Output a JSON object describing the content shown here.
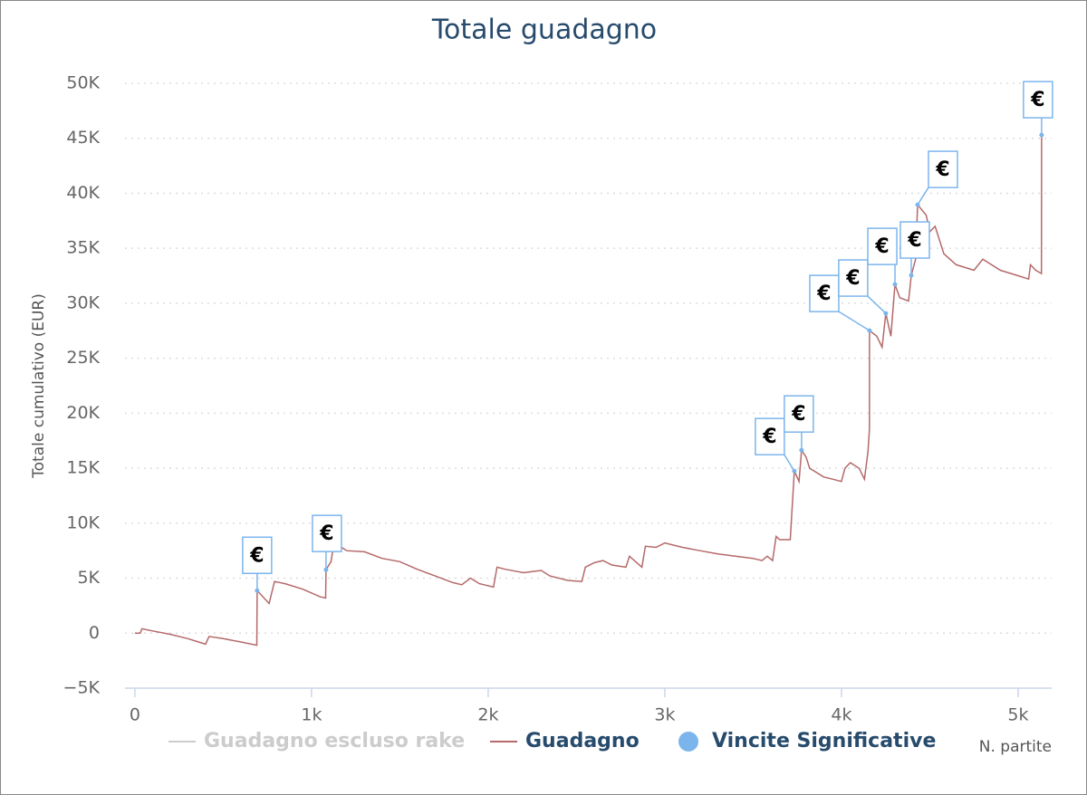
{
  "chart_data": {
    "type": "line",
    "title": "Totale guadagno",
    "x_label": "N. partite",
    "y_label": "Totale cumulativo (EUR)",
    "xlim": [
      -56,
      5190
    ],
    "ylim": [
      -5000,
      50000
    ],
    "xticks": [
      0,
      {
        "value": 1000,
        "label": "1k"
      },
      {
        "value": 2000,
        "label": "2k"
      },
      {
        "value": 3000,
        "label": "3k"
      },
      {
        "value": 4000,
        "label": "4k"
      },
      {
        "value": 5000,
        "label": "5k"
      }
    ],
    "yticks": [
      {
        "value": -5000,
        "label": "−5K"
      },
      0,
      {
        "value": 5000,
        "label": "5K"
      },
      {
        "value": 10000,
        "label": "10K"
      },
      {
        "value": 15000,
        "label": "15K"
      },
      {
        "value": 20000,
        "label": "20K"
      },
      {
        "value": 25000,
        "label": "25K"
      },
      {
        "value": 30000,
        "label": "30K"
      },
      {
        "value": 35000,
        "label": "35K"
      },
      {
        "value": 40000,
        "label": "40K"
      },
      {
        "value": 45000,
        "label": "45K"
      },
      {
        "value": 50000,
        "label": "50K"
      }
    ],
    "grid": true,
    "series": [
      {
        "name": "Guadagno escluso rake",
        "color": "#cccccc",
        "visible": false
      },
      {
        "name": "Guadagno",
        "color": "#b5696a",
        "x": [
          0,
          30,
          40,
          100,
          200,
          300,
          400,
          420,
          500,
          600,
          690,
          692,
          760,
          790,
          850,
          950,
          1050,
          1080,
          1082,
          1110,
          1120,
          1130,
          1200,
          1300,
          1400,
          1500,
          1600,
          1700,
          1800,
          1850,
          1900,
          1950,
          2030,
          2050,
          2100,
          2200,
          2300,
          2350,
          2450,
          2530,
          2550,
          2600,
          2650,
          2700,
          2780,
          2800,
          2870,
          2890,
          2950,
          3000,
          3100,
          3200,
          3300,
          3400,
          3500,
          3550,
          3580,
          3610,
          3630,
          3650,
          3710,
          3733,
          3760,
          3774,
          3800,
          3820,
          3900,
          3950,
          4000,
          4020,
          4050,
          4100,
          4130,
          4150,
          4158,
          4159,
          4200,
          4230,
          4251,
          4280,
          4303,
          4330,
          4380,
          4395,
          4420,
          4431,
          4480,
          4500,
          4530,
          4580,
          4650,
          4750,
          4800,
          4900,
          5000,
          5060,
          5070,
          5100,
          5132,
          5133
        ],
        "values": [
          0,
          0,
          400,
          200,
          -100,
          -500,
          -1000,
          -300,
          -500,
          -800,
          -1100,
          3870,
          2700,
          4700,
          4500,
          4000,
          3300,
          3200,
          5770,
          6500,
          7500,
          8200,
          7500,
          7400,
          6800,
          6500,
          5800,
          5200,
          4600,
          4400,
          5000,
          4500,
          4200,
          6000,
          5800,
          5500,
          5700,
          5200,
          4800,
          4700,
          6000,
          6400,
          6600,
          6200,
          6000,
          7000,
          6000,
          7900,
          7800,
          8200,
          7800,
          7500,
          7200,
          7000,
          6800,
          6600,
          7000,
          6600,
          8800,
          8500,
          8500,
          14745,
          13800,
          16640,
          16000,
          15000,
          14200,
          14000,
          13800,
          15000,
          15500,
          15000,
          14000,
          16500,
          18500,
          27510,
          27000,
          26000,
          29080,
          27000,
          31710,
          30500,
          30200,
          32540,
          34000,
          38960,
          38000,
          36500,
          37000,
          34500,
          33500,
          33000,
          34000,
          33000,
          32500,
          32200,
          33500,
          33000,
          32700,
          45300
        ]
      },
      {
        "name": "Vincite Significative",
        "color": "#7cb5ec",
        "x": [
          692,
          1082,
          3733,
          3774,
          4159,
          4251,
          4303,
          4395,
          4431,
          5133
        ],
        "values": [
          3870,
          5770,
          14745,
          16640,
          27510,
          29080,
          31710,
          32540,
          38960,
          45300
        ],
        "labels": [
          "€",
          "€",
          "€",
          "€",
          "€",
          "€",
          "€",
          "€",
          "€",
          "€"
        ]
      }
    ]
  }
}
